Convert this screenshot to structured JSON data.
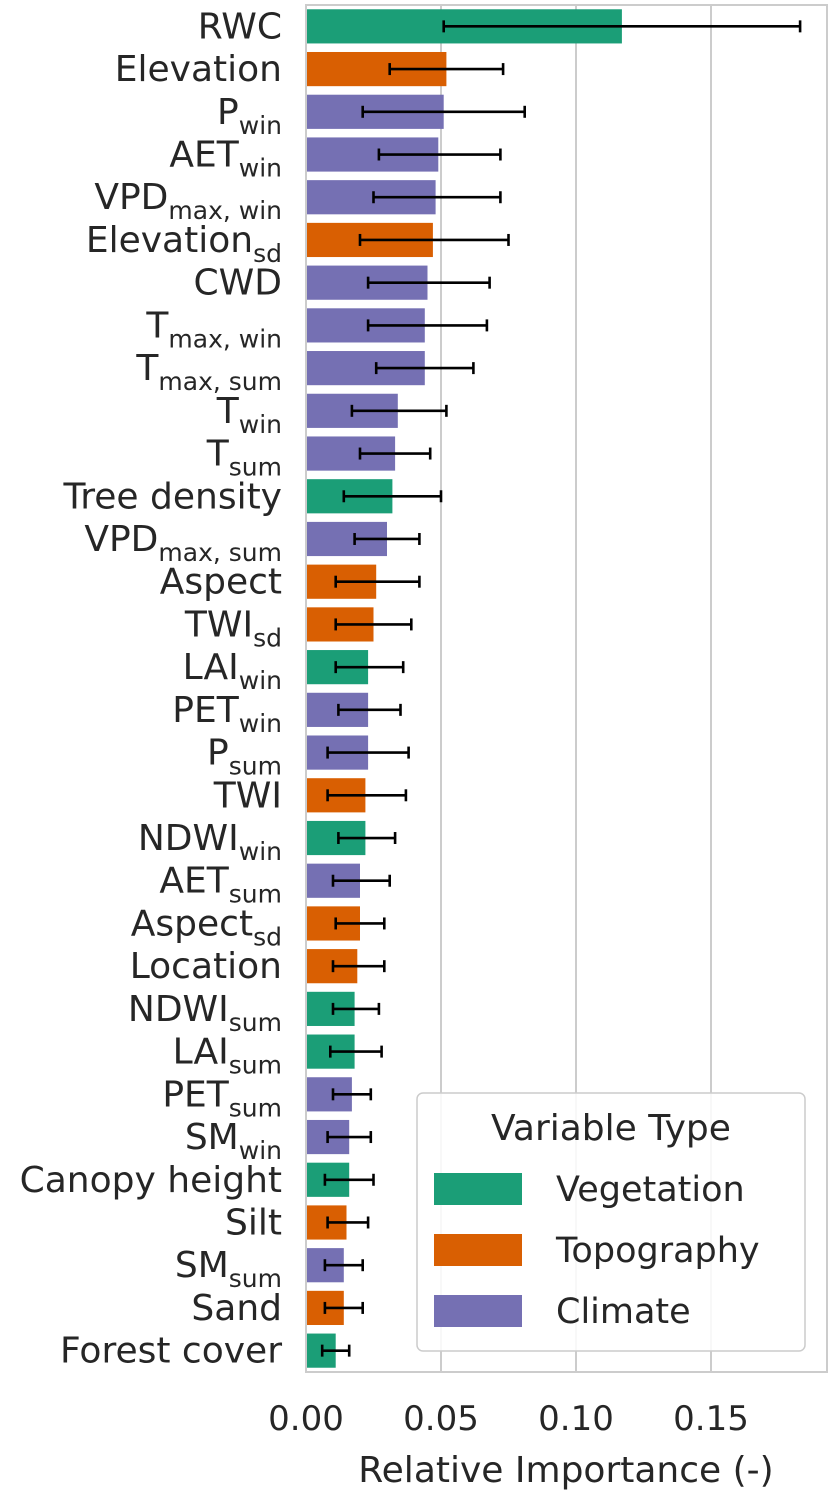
{
  "chart_data": {
    "type": "bar",
    "orientation": "horizontal",
    "xlabel": "Relative Importance (-)",
    "xlim": [
      0.0,
      0.19
    ],
    "xticks": [
      "0.00",
      "0.05",
      "0.10",
      "0.15"
    ],
    "xtick_values": [
      0.0,
      0.05,
      0.1,
      0.15
    ],
    "grid": "vertical gridlines",
    "colors": {
      "Vegetation": "#1b9e77",
      "Topography": "#d95f02",
      "Climate": "#7570b3"
    },
    "legend": {
      "title": "Variable Type",
      "placement": "lower-right",
      "entries": [
        "Vegetation",
        "Topography",
        "Climate"
      ]
    },
    "bars": [
      {
        "base": "RWC",
        "sub": "",
        "type": "Vegetation",
        "value": 0.117,
        "err_low": 0.051,
        "err_high": 0.183
      },
      {
        "base": "Elevation",
        "sub": "",
        "type": "Topography",
        "value": 0.052,
        "err_low": 0.031,
        "err_high": 0.073
      },
      {
        "base": "P",
        "sub": "win",
        "type": "Climate",
        "value": 0.051,
        "err_low": 0.021,
        "err_high": 0.081
      },
      {
        "base": "AET",
        "sub": "win",
        "type": "Climate",
        "value": 0.049,
        "err_low": 0.027,
        "err_high": 0.072
      },
      {
        "base": "VPD",
        "sub": "max, win",
        "type": "Climate",
        "value": 0.048,
        "err_low": 0.025,
        "err_high": 0.072
      },
      {
        "base": "Elevation",
        "sub": "sd",
        "type": "Topography",
        "value": 0.047,
        "err_low": 0.02,
        "err_high": 0.075
      },
      {
        "base": "CWD",
        "sub": "",
        "type": "Climate",
        "value": 0.045,
        "err_low": 0.023,
        "err_high": 0.068
      },
      {
        "base": "T",
        "sub": "max, win",
        "type": "Climate",
        "value": 0.044,
        "err_low": 0.023,
        "err_high": 0.067
      },
      {
        "base": "T",
        "sub": "max, sum",
        "type": "Climate",
        "value": 0.044,
        "err_low": 0.026,
        "err_high": 0.062
      },
      {
        "base": "T",
        "sub": "win",
        "type": "Climate",
        "value": 0.034,
        "err_low": 0.017,
        "err_high": 0.052
      },
      {
        "base": "T",
        "sub": "sum",
        "type": "Climate",
        "value": 0.033,
        "err_low": 0.02,
        "err_high": 0.046
      },
      {
        "base": "Tree density",
        "sub": "",
        "type": "Vegetation",
        "value": 0.032,
        "err_low": 0.014,
        "err_high": 0.05
      },
      {
        "base": "VPD",
        "sub": "max, sum",
        "type": "Climate",
        "value": 0.03,
        "err_low": 0.018,
        "err_high": 0.042
      },
      {
        "base": "Aspect",
        "sub": "",
        "type": "Topography",
        "value": 0.026,
        "err_low": 0.011,
        "err_high": 0.042
      },
      {
        "base": "TWI",
        "sub": "sd",
        "type": "Topography",
        "value": 0.025,
        "err_low": 0.011,
        "err_high": 0.039
      },
      {
        "base": "LAI",
        "sub": "win",
        "type": "Vegetation",
        "value": 0.023,
        "err_low": 0.011,
        "err_high": 0.036
      },
      {
        "base": "PET",
        "sub": "win",
        "type": "Climate",
        "value": 0.023,
        "err_low": 0.012,
        "err_high": 0.035
      },
      {
        "base": "P",
        "sub": "sum",
        "type": "Climate",
        "value": 0.023,
        "err_low": 0.008,
        "err_high": 0.038
      },
      {
        "base": "TWI",
        "sub": "",
        "type": "Topography",
        "value": 0.022,
        "err_low": 0.008,
        "err_high": 0.037
      },
      {
        "base": "NDWI",
        "sub": "win",
        "type": "Vegetation",
        "value": 0.022,
        "err_low": 0.012,
        "err_high": 0.033
      },
      {
        "base": "AET",
        "sub": "sum",
        "type": "Climate",
        "value": 0.02,
        "err_low": 0.01,
        "err_high": 0.031
      },
      {
        "base": "Aspect",
        "sub": "sd",
        "type": "Topography",
        "value": 0.02,
        "err_low": 0.011,
        "err_high": 0.029
      },
      {
        "base": "Location",
        "sub": "",
        "type": "Topography",
        "value": 0.019,
        "err_low": 0.01,
        "err_high": 0.029
      },
      {
        "base": "NDWI",
        "sub": "sum",
        "type": "Vegetation",
        "value": 0.018,
        "err_low": 0.01,
        "err_high": 0.027
      },
      {
        "base": "LAI",
        "sub": "sum",
        "type": "Vegetation",
        "value": 0.018,
        "err_low": 0.009,
        "err_high": 0.028
      },
      {
        "base": "PET",
        "sub": "sum",
        "type": "Climate",
        "value": 0.017,
        "err_low": 0.01,
        "err_high": 0.024
      },
      {
        "base": "SM",
        "sub": "win",
        "type": "Climate",
        "value": 0.016,
        "err_low": 0.008,
        "err_high": 0.024
      },
      {
        "base": "Canopy height",
        "sub": "",
        "type": "Vegetation",
        "value": 0.016,
        "err_low": 0.007,
        "err_high": 0.025
      },
      {
        "base": "Silt",
        "sub": "",
        "type": "Topography",
        "value": 0.015,
        "err_low": 0.008,
        "err_high": 0.023
      },
      {
        "base": "SM",
        "sub": "sum",
        "type": "Climate",
        "value": 0.014,
        "err_low": 0.007,
        "err_high": 0.021
      },
      {
        "base": "Sand",
        "sub": "",
        "type": "Topography",
        "value": 0.014,
        "err_low": 0.007,
        "err_high": 0.021
      },
      {
        "base": "Forest cover",
        "sub": "",
        "type": "Vegetation",
        "value": 0.011,
        "err_low": 0.006,
        "err_high": 0.016
      }
    ]
  }
}
